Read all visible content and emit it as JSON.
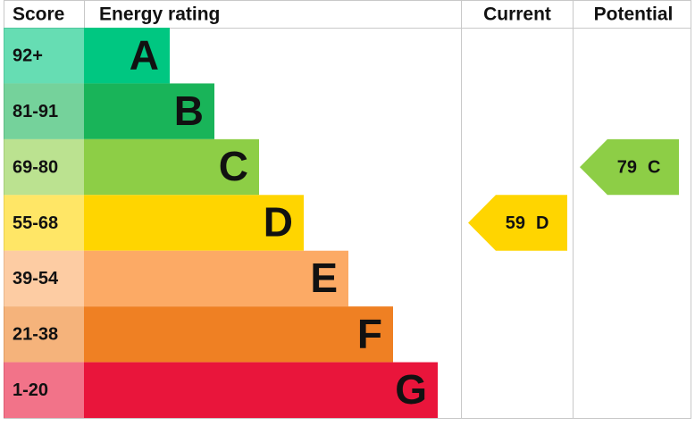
{
  "headers": {
    "score": "Score",
    "rating": "Energy rating",
    "current": "Current",
    "potential": "Potential"
  },
  "bands": [
    {
      "score": "92+",
      "letter": "A",
      "color": "#00c781"
    },
    {
      "score": "81-91",
      "letter": "B",
      "color": "#19b459"
    },
    {
      "score": "69-80",
      "letter": "C",
      "color": "#8dce46"
    },
    {
      "score": "55-68",
      "letter": "D",
      "color": "#ffd500"
    },
    {
      "score": "39-54",
      "letter": "E",
      "color": "#fcaa65"
    },
    {
      "score": "21-38",
      "letter": "F",
      "color": "#ef8023"
    },
    {
      "score": "1-20",
      "letter": "G",
      "color": "#e9153b"
    }
  ],
  "current": {
    "value": 59,
    "letter": "D"
  },
  "potential": {
    "value": 79,
    "letter": "C"
  }
}
